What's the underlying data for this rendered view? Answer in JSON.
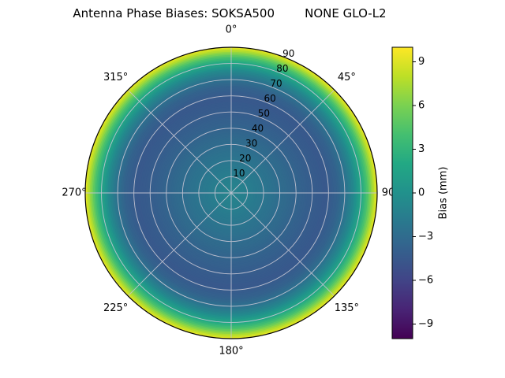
{
  "chart_data": {
    "type": "heatmap",
    "projection": "polar",
    "title": "Antenna Phase Biases: SOKSA500        NONE GLO-L2",
    "theta_ticks_deg": [
      0,
      45,
      90,
      135,
      180,
      225,
      270,
      315
    ],
    "theta_tick_labels": [
      "0°",
      "45°",
      "90",
      "135°",
      "180°",
      "225°",
      "270°",
      "315°"
    ],
    "radial_ticks_deg": [
      10,
      20,
      30,
      40,
      50,
      60,
      70,
      80,
      90
    ],
    "radial_tick_labels": [
      "10",
      "20",
      "30",
      "40",
      "50",
      "60",
      "70",
      "80",
      "90"
    ],
    "rlabel_angle_deg": 22.5,
    "r_max": 90,
    "grid": true,
    "symmetry": "axisymmetric: bias depends on zenith angle (radius) only",
    "radial_profile": {
      "zenith_deg": [
        0,
        10,
        20,
        30,
        40,
        50,
        58,
        65,
        70,
        75,
        80,
        84,
        87,
        90
      ],
      "bias_mm": [
        -1.0,
        -1.5,
        -2.2,
        -2.9,
        -3.6,
        -4.2,
        -4.5,
        -3.8,
        -2.6,
        -0.8,
        1.8,
        4.5,
        7.2,
        9.6
      ]
    },
    "colorbar": {
      "label": "Bias (mm)",
      "position": "right",
      "vmin": -10,
      "vmax": 10,
      "tick_values": [
        9,
        6,
        3,
        0,
        -3,
        -6,
        -9
      ],
      "tick_labels": [
        "9",
        "6",
        "3",
        "0",
        "−3",
        "−6",
        "−9"
      ],
      "colormap": "viridis"
    },
    "colormap_stops": [
      [
        0.0,
        "#440154"
      ],
      [
        0.1,
        "#482475"
      ],
      [
        0.2,
        "#414487"
      ],
      [
        0.3,
        "#355f8d"
      ],
      [
        0.4,
        "#2a788e"
      ],
      [
        0.5,
        "#21918c"
      ],
      [
        0.6,
        "#22a884"
      ],
      [
        0.7,
        "#44bf70"
      ],
      [
        0.8,
        "#7ad151"
      ],
      [
        0.9,
        "#bddf26"
      ],
      [
        1.0,
        "#fde725"
      ]
    ]
  },
  "colors": {
    "background": "#ffffff",
    "grid": "#c4c4d2",
    "outline": "#000000",
    "text": "#000000"
  }
}
